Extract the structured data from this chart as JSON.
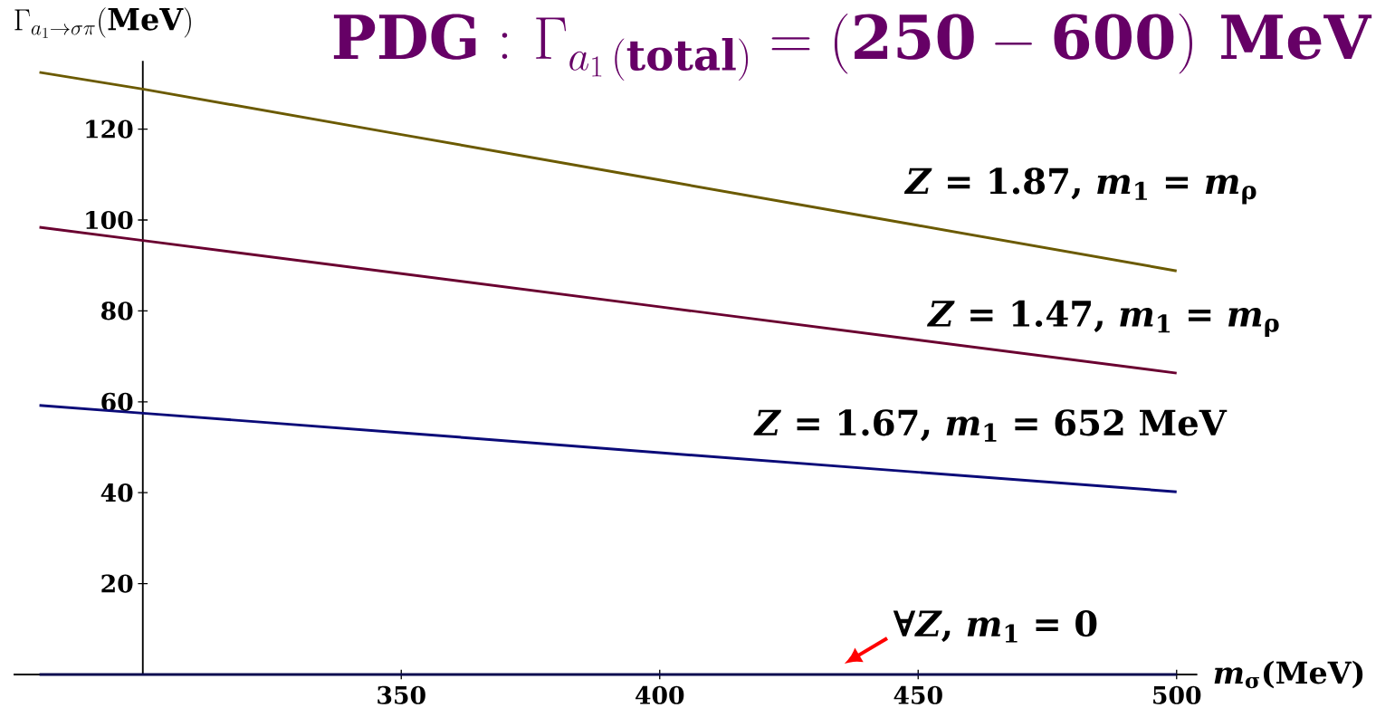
{
  "chart_data": {
    "type": "line",
    "title": "\\mathbf{PDG:}\\ \\Gamma_{a_1\\,\\mathbf{(total)}} = \\mathbf{(250-600)\\ MeV}",
    "xlabel": "*m*$_{σ}$(MeV)",
    "ylabel": "\\Gamma_{a_1\\to\\sigma\\pi}\\mathbf{(MeV)}",
    "x": [
      280,
      300,
      350,
      400,
      450,
      500
    ],
    "series": [
      {
        "name": "*Z* = 1.87, *m*$_{1}$ = *m*$_{ρ}$",
        "color": "#6b5a00",
        "values": [
          132.5,
          128.8,
          118.8,
          108.8,
          98.8,
          88.8
        ]
      },
      {
        "name": "*Z* = 1.47, *m*$_{1}$ = *m*$_{ρ}$",
        "color": "#6a0030",
        "values": [
          98.4,
          95.5,
          88.2,
          80.9,
          73.6,
          66.3
        ]
      },
      {
        "name": "*Z* = 1.67, *m*$_{1}$ = 652 MeV",
        "color": "#0a0a78",
        "values": [
          59.2,
          57.5,
          53.2,
          48.8,
          44.5,
          40.2
        ]
      },
      {
        "name": "∀*Z*, *m*$_{1}$ = 0",
        "color": "#0a0a50",
        "values": [
          0,
          0,
          0,
          0,
          0,
          0
        ]
      }
    ],
    "xlim": [
      275,
      504
    ],
    "ylim": [
      0,
      135
    ],
    "xticks": [
      350,
      400,
      450,
      500
    ],
    "yticks": [
      20,
      40,
      60,
      80,
      100,
      120
    ]
  }
}
